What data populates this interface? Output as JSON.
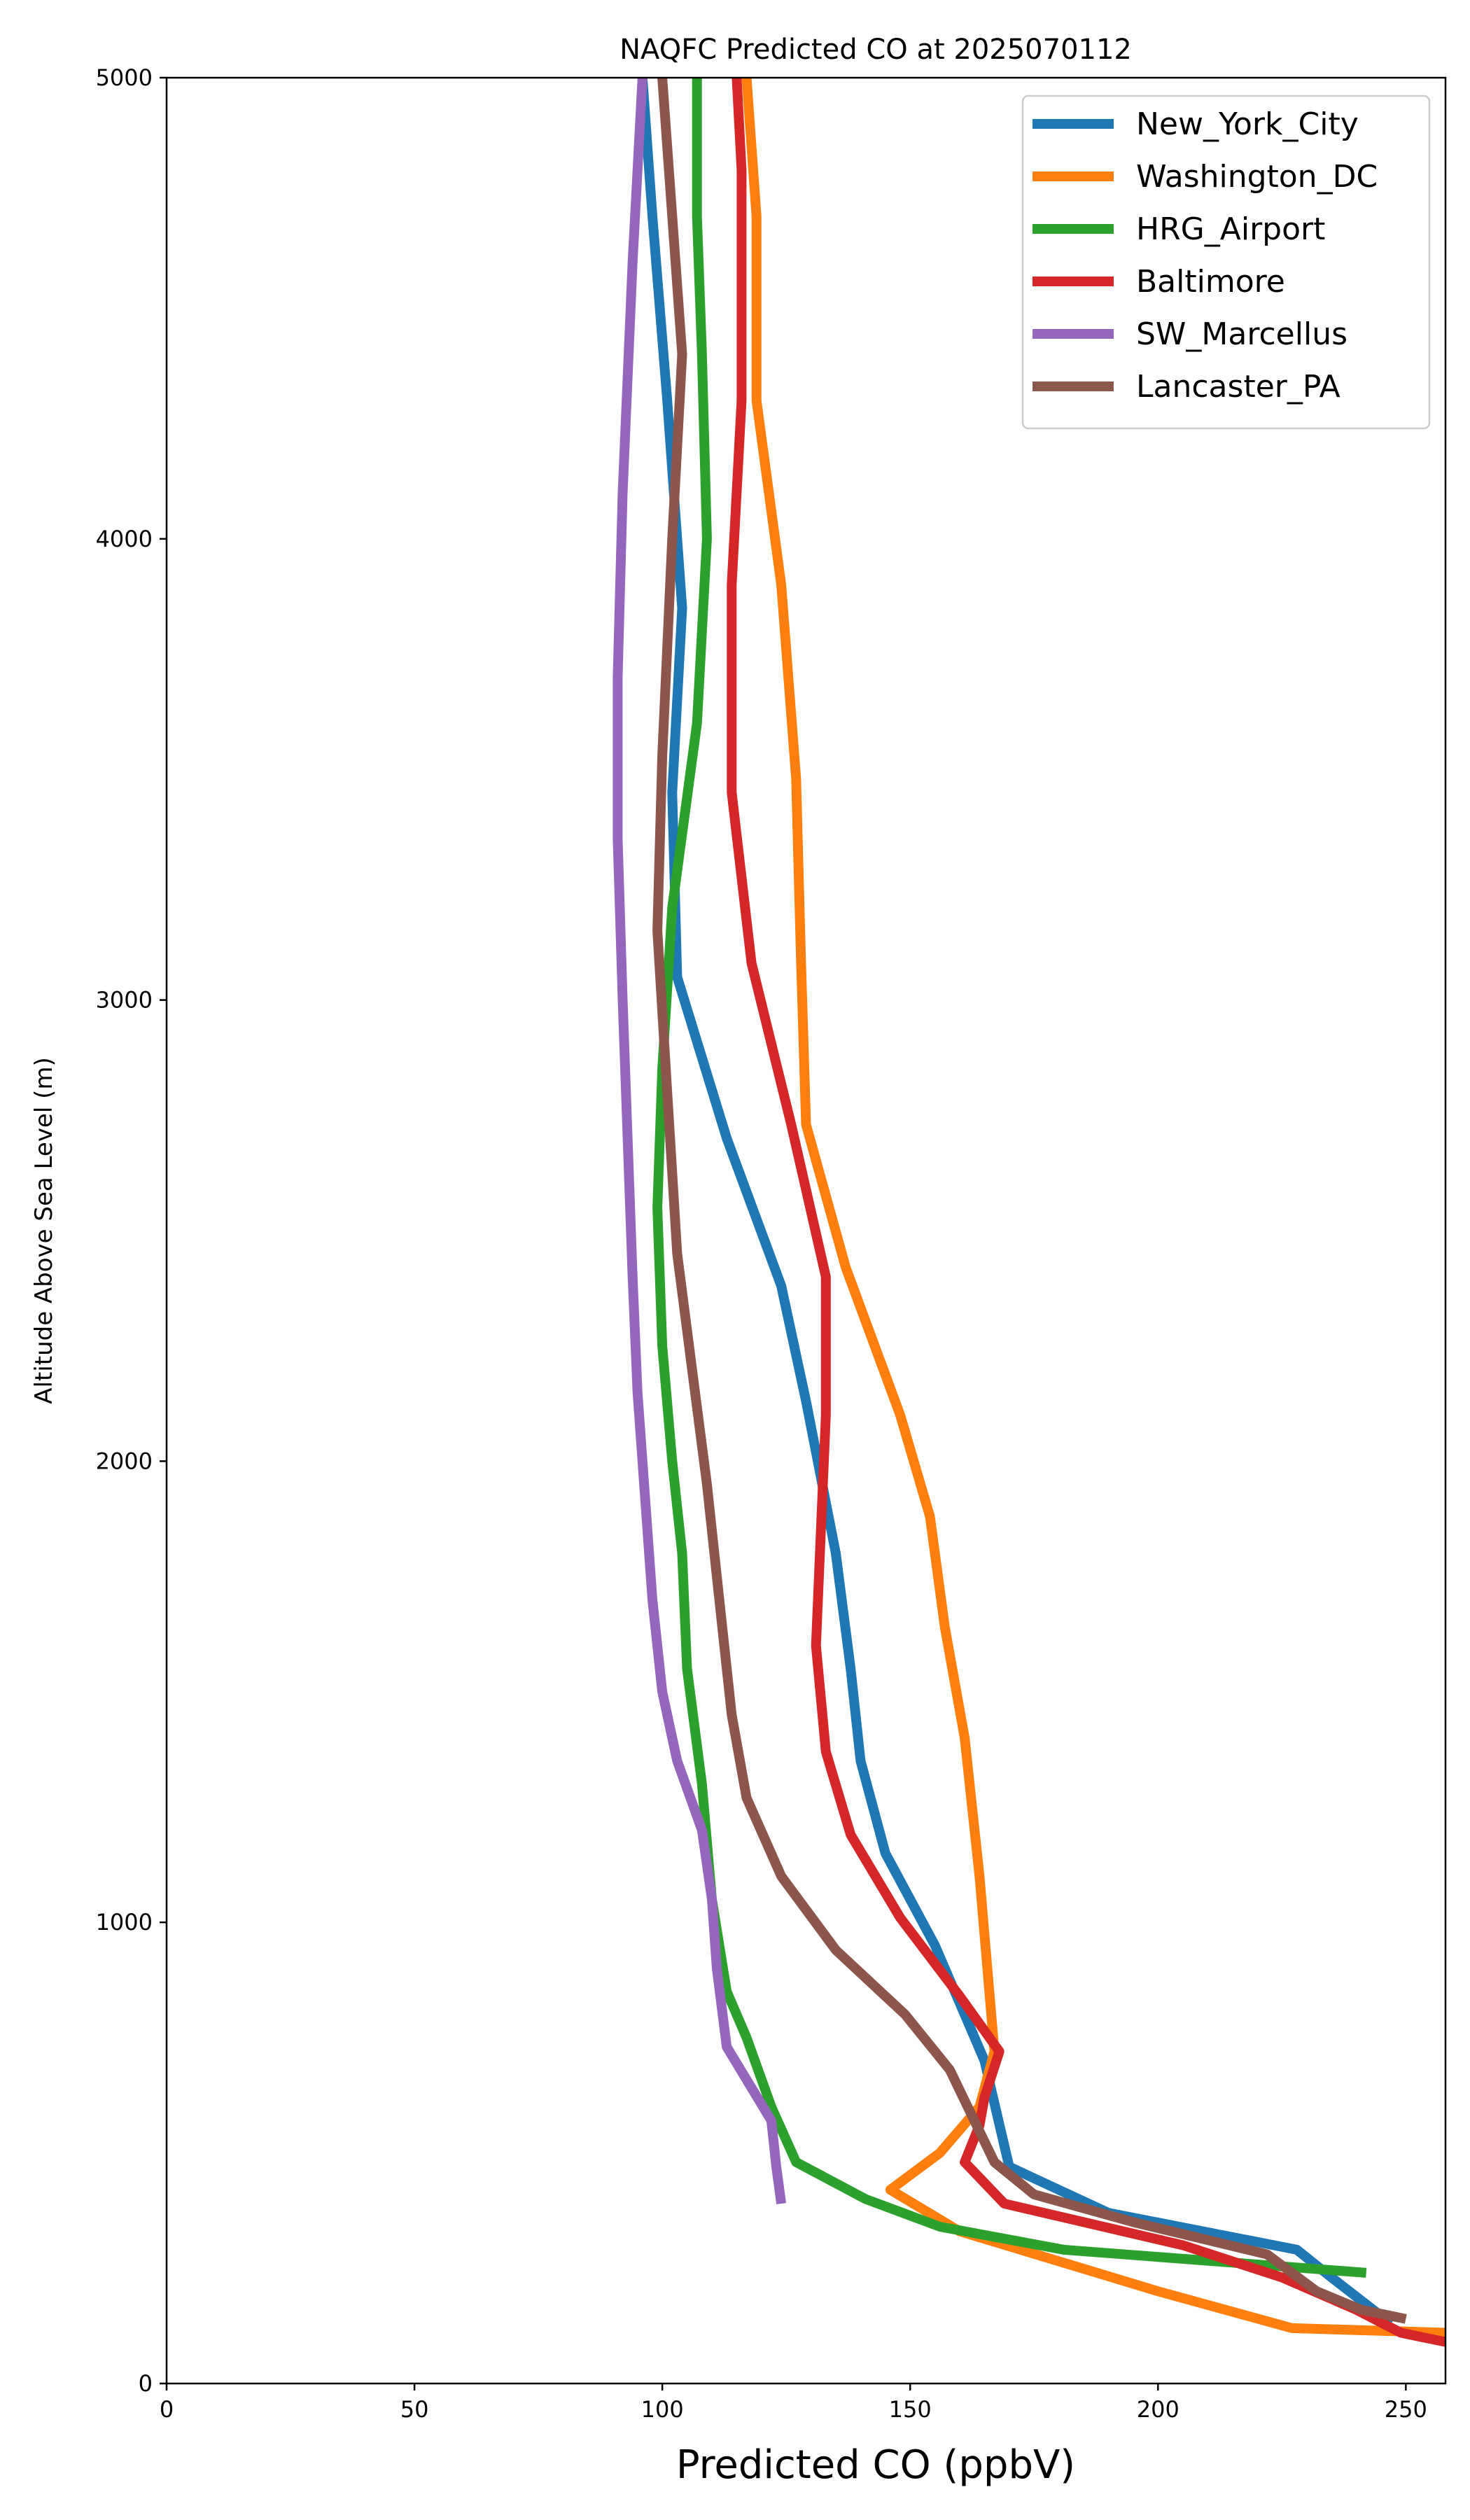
{
  "chart_data": {
    "type": "line",
    "title": "NAQFC Predicted CO at 2025070112",
    "xlabel": "Predicted CO (ppbV)",
    "ylabel": "Altitude Above Sea Level (m)",
    "xlim": [
      0,
      258
    ],
    "ylim": [
      0,
      5000
    ],
    "xticks": [
      0,
      50,
      100,
      150,
      200,
      250
    ],
    "yticks": [
      0,
      1000,
      2000,
      3000,
      4000,
      5000
    ],
    "grid": false,
    "legend_position": "top-right",
    "series": [
      {
        "name": "New_York_City",
        "color": "#1f77b4",
        "points": [
          [
            96,
            5000
          ],
          [
            98,
            4700
          ],
          [
            101,
            4300
          ],
          [
            104,
            3850
          ],
          [
            102,
            3450
          ],
          [
            103,
            3050
          ],
          [
            113,
            2700
          ],
          [
            124,
            2380
          ],
          [
            129,
            2130
          ],
          [
            135,
            1800
          ],
          [
            138,
            1550
          ],
          [
            140,
            1350
          ],
          [
            145,
            1150
          ],
          [
            155,
            950
          ],
          [
            165,
            700
          ],
          [
            170,
            470
          ],
          [
            190,
            370
          ],
          [
            228,
            290
          ],
          [
            235,
            230
          ],
          [
            247,
            130
          ]
        ]
      },
      {
        "name": "Washington_DC",
        "color": "#ff7f0e",
        "points": [
          [
            117,
            5000
          ],
          [
            119,
            4700
          ],
          [
            119,
            4300
          ],
          [
            124,
            3900
          ],
          [
            127,
            3480
          ],
          [
            128,
            3080
          ],
          [
            129,
            2730
          ],
          [
            137,
            2420
          ],
          [
            148,
            2100
          ],
          [
            154,
            1880
          ],
          [
            157,
            1640
          ],
          [
            161,
            1400
          ],
          [
            164,
            1100
          ],
          [
            167,
            720
          ],
          [
            164,
            600
          ],
          [
            156,
            500
          ],
          [
            146,
            420
          ],
          [
            160,
            330
          ],
          [
            200,
            200
          ],
          [
            227,
            120
          ],
          [
            258,
            110
          ]
        ]
      },
      {
        "name": "HRG_Airport",
        "color": "#2ca02c",
        "points": [
          [
            107,
            5000
          ],
          [
            107,
            4700
          ],
          [
            108,
            4400
          ],
          [
            109,
            4000
          ],
          [
            107,
            3600
          ],
          [
            102,
            3200
          ],
          [
            100,
            2850
          ],
          [
            99,
            2550
          ],
          [
            100,
            2250
          ],
          [
            102,
            2000
          ],
          [
            104,
            1800
          ],
          [
            105,
            1550
          ],
          [
            108,
            1300
          ],
          [
            110,
            1050
          ],
          [
            113,
            850
          ],
          [
            117,
            750
          ],
          [
            122,
            600
          ],
          [
            127,
            480
          ],
          [
            141,
            400
          ],
          [
            156,
            340
          ],
          [
            181,
            290
          ],
          [
            242,
            240
          ]
        ]
      },
      {
        "name": "Baltimore",
        "color": "#d62728",
        "points": [
          [
            115,
            5000
          ],
          [
            116,
            4800
          ],
          [
            116,
            4300
          ],
          [
            114,
            3900
          ],
          [
            114,
            3450
          ],
          [
            118,
            3080
          ],
          [
            126,
            2730
          ],
          [
            133,
            2400
          ],
          [
            133,
            2100
          ],
          [
            132,
            1850
          ],
          [
            131,
            1600
          ],
          [
            133,
            1370
          ],
          [
            138,
            1190
          ],
          [
            148,
            1010
          ],
          [
            160,
            840
          ],
          [
            168,
            720
          ],
          [
            165,
            620
          ],
          [
            164,
            560
          ],
          [
            161,
            480
          ],
          [
            169,
            390
          ],
          [
            205,
            300
          ],
          [
            225,
            230
          ],
          [
            240,
            160
          ],
          [
            249,
            110
          ],
          [
            258,
            90
          ]
        ]
      },
      {
        "name": "SW_Marcellus",
        "color": "#9467bd",
        "points": [
          [
            96,
            5000
          ],
          [
            94,
            4600
          ],
          [
            92,
            4100
          ],
          [
            91,
            3700
          ],
          [
            91,
            3350
          ],
          [
            92,
            3000
          ],
          [
            93,
            2700
          ],
          [
            94,
            2400
          ],
          [
            95,
            2150
          ],
          [
            97,
            1850
          ],
          [
            98,
            1700
          ],
          [
            100,
            1500
          ],
          [
            103,
            1350
          ],
          [
            108,
            1200
          ],
          [
            110,
            1050
          ],
          [
            111,
            900
          ],
          [
            113,
            730
          ],
          [
            122,
            570
          ],
          [
            123,
            470
          ],
          [
            124,
            390
          ]
        ]
      },
      {
        "name": "Lancaster_PA",
        "color": "#8c564b",
        "points": [
          [
            100,
            5000
          ],
          [
            102,
            4700
          ],
          [
            104,
            4400
          ],
          [
            102,
            4000
          ],
          [
            100,
            3530
          ],
          [
            99,
            3150
          ],
          [
            101,
            2800
          ],
          [
            103,
            2450
          ],
          [
            106,
            2200
          ],
          [
            109,
            1950
          ],
          [
            112,
            1650
          ],
          [
            114,
            1450
          ],
          [
            117,
            1270
          ],
          [
            124,
            1100
          ],
          [
            135,
            940
          ],
          [
            149,
            800
          ],
          [
            158,
            680
          ],
          [
            167,
            480
          ],
          [
            175,
            410
          ],
          [
            195,
            350
          ],
          [
            222,
            280
          ],
          [
            232,
            200
          ],
          [
            241,
            160
          ],
          [
            250,
            140
          ]
        ]
      }
    ]
  }
}
